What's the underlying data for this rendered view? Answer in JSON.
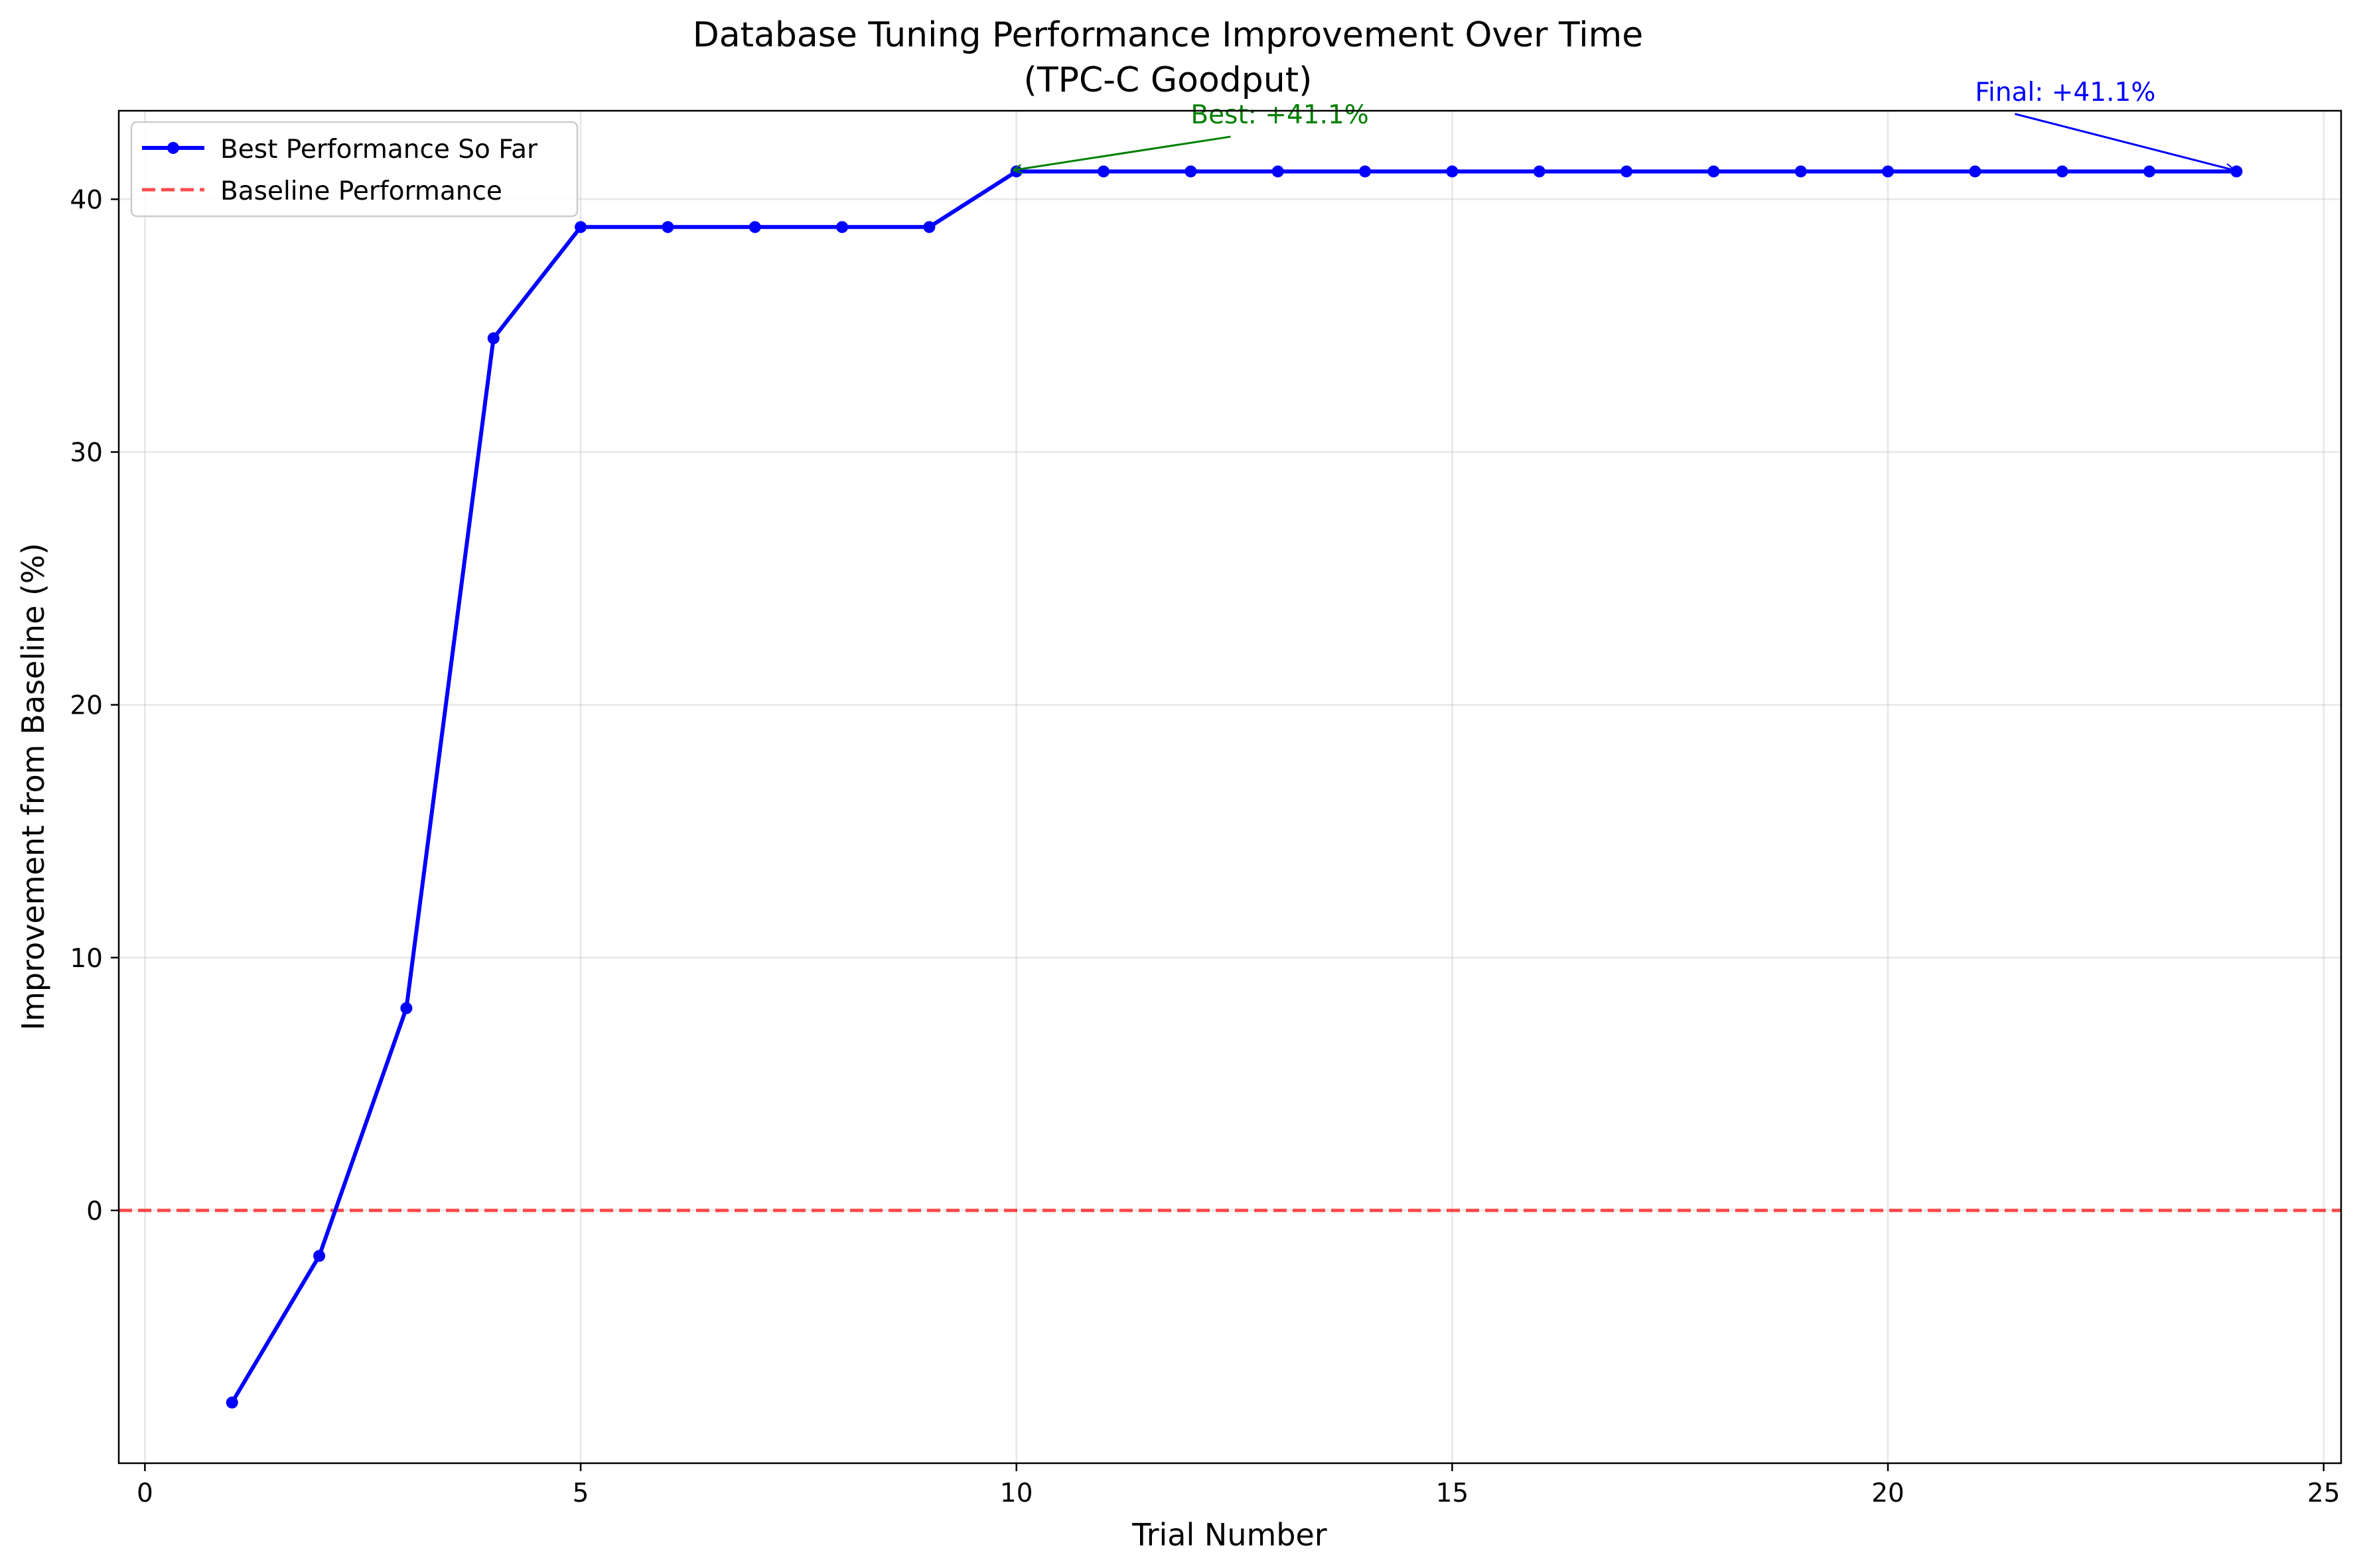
{
  "chart_data": {
    "type": "line",
    "title": "Database Tuning Performance Improvement Over Time",
    "subtitle": "(TPC-C Goodput)",
    "xlabel": "Trial Number",
    "ylabel": "Improvement from Baseline (%)",
    "xlim": [
      -0.3,
      25.2
    ],
    "ylim": [
      -10,
      43.5
    ],
    "xticks": [
      0,
      5,
      10,
      15,
      20,
      25
    ],
    "yticks": [
      0,
      10,
      20,
      30,
      40
    ],
    "grid": true,
    "legend_position": "top-left",
    "series": [
      {
        "name": "Best Performance So Far",
        "color": "#0000ff",
        "style": "solid-with-markers",
        "x": [
          1,
          2,
          3,
          4,
          5,
          6,
          7,
          8,
          9,
          10,
          11,
          12,
          13,
          14,
          15,
          16,
          17,
          18,
          19,
          20,
          21,
          22,
          23,
          24
        ],
        "values": [
          -7.6,
          -1.8,
          8.0,
          34.5,
          38.9,
          38.9,
          38.9,
          38.9,
          38.9,
          41.1,
          41.1,
          41.1,
          41.1,
          41.1,
          41.1,
          41.1,
          41.1,
          41.1,
          41.1,
          41.1,
          41.1,
          41.1,
          41.1,
          41.1
        ]
      }
    ],
    "reference_lines": [
      {
        "name": "Baseline Performance",
        "y": 0,
        "color": "#ff0000",
        "style": "dashed"
      }
    ],
    "annotations": [
      {
        "text": "Best: +41.1%",
        "color": "#008000",
        "point": [
          10,
          41.1
        ],
        "text_at": [
          12,
          43.0
        ]
      },
      {
        "text": "Final: +41.1%",
        "color": "#0000ff",
        "point": [
          24,
          41.1
        ],
        "text_at": [
          21,
          43.9
        ]
      }
    ]
  }
}
